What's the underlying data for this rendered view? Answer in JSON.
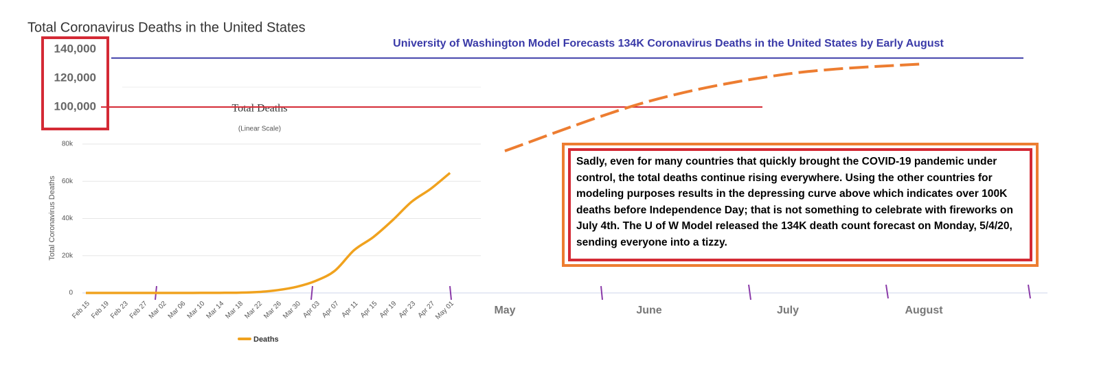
{
  "chart_data": {
    "type": "line",
    "title": "Total Coronavirus Deaths in the United States",
    "inner_title": "Total Deaths",
    "subtitle": "(Linear Scale)",
    "y_label": "Total Coronavirus Deaths",
    "headline": "University of Washington Model Forecasts 134K Coronavirus Deaths in the United States by Early August",
    "note": "Sadly, even for many countries that quickly brought the COVID-19 pandemic under control, the total deaths continue rising everywhere. Using the other countries for modeling purposes results in the depressing curve above which indicates over 100K deaths before Independence Day; that is not something to celebrate with fireworks on July 4th. The U of W Model released the 134K death count forecast on Monday, 5/4/20, sending everyone into a tizzy.",
    "categories": [
      "Feb 15",
      "Feb 19",
      "Feb 23",
      "Feb 27",
      "Mar 02",
      "Mar 06",
      "Mar 10",
      "Mar 14",
      "Mar 18",
      "Mar 22",
      "Mar 26",
      "Mar 30",
      "Apr 03",
      "Apr 07",
      "Apr 11",
      "Apr 15",
      "Apr 19",
      "Apr 23",
      "Apr 27",
      "May 01"
    ],
    "series": [
      {
        "name": "Deaths",
        "color": "#f0a21e",
        "values": [
          0,
          0,
          0,
          0,
          5,
          15,
          30,
          60,
          150,
          500,
          1500,
          3300,
          6500,
          12000,
          23000,
          30000,
          39000,
          49000,
          56000,
          64500
        ]
      }
    ],
    "ylim": [
      0,
      80000
    ],
    "yticks": [
      0,
      {
        "value": 20000,
        "label": "20k"
      },
      {
        "value": 40000,
        "label": "40k"
      },
      {
        "value": 60000,
        "label": "60k"
      },
      {
        "value": 80000,
        "label": "80k"
      }
    ],
    "grid": true,
    "forecast": {
      "categories": [
        "May",
        "June",
        "July",
        "August"
      ],
      "values": [
        69500,
        104000,
        123000,
        130000
      ],
      "color": "#ed7d31",
      "dashed": true,
      "axis": "y2"
    },
    "y2lim": [
      90000,
      145000
    ],
    "y2ticks": [
      {
        "value": 100000,
        "label": "100,000"
      },
      {
        "value": 120000,
        "label": "120,000"
      },
      {
        "value": 140000,
        "label": "140,000"
      }
    ],
    "reference_lines": [
      {
        "value": 134000,
        "color": "#3a3aa8"
      },
      {
        "value": 100000,
        "color": "#d42a35"
      }
    ]
  }
}
